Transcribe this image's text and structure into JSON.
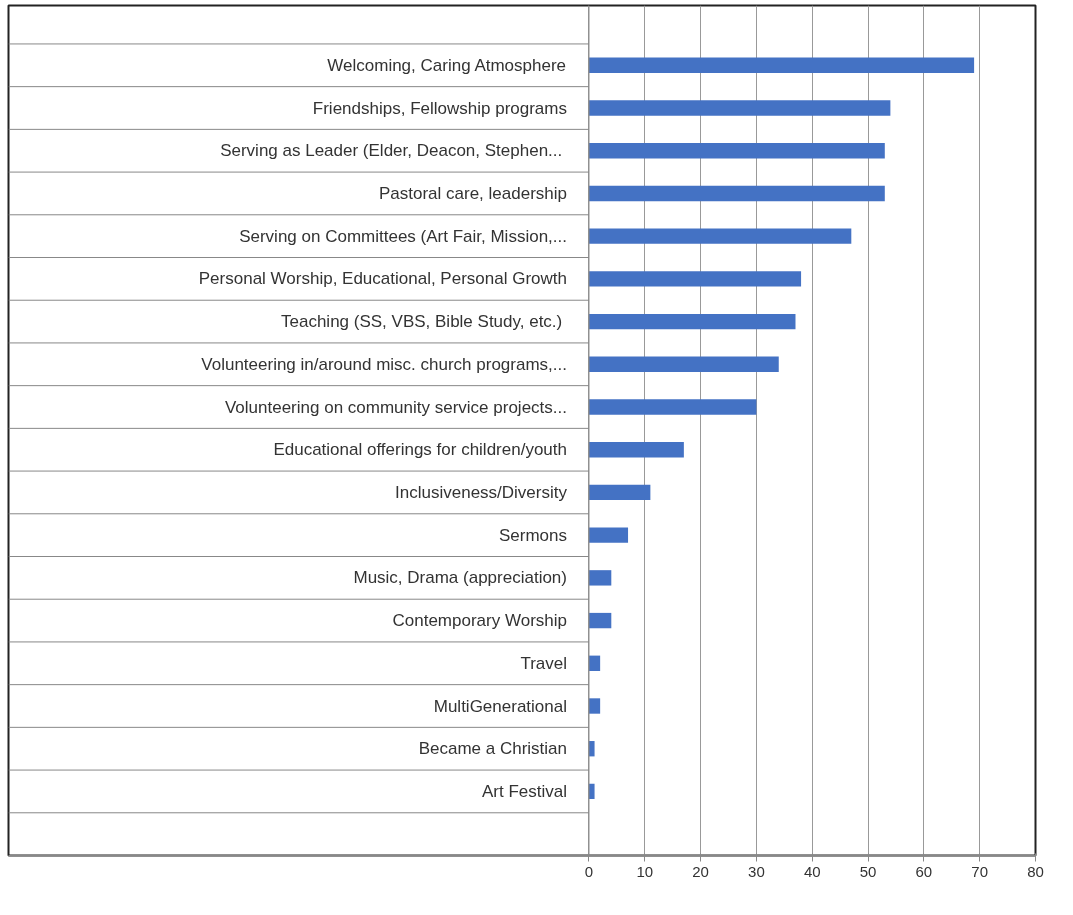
{
  "chart_data": {
    "type": "bar",
    "orientation": "horizontal",
    "color": "#4472c4",
    "categories": [
      "Welcoming, Caring Atmosphere",
      "Friendships, Fellowship programs",
      "Serving as Leader  (Elder, Deacon, Stephen...",
      "Pastoral care, leadership",
      "Serving on Committees (Art Fair, Mission,...",
      "Personal Worship, Educational, Personal Growth",
      "Teaching  (SS, VBS, Bible Study, etc.)",
      "Volunteering in/around misc. church programs,...",
      "Volunteering on community service projects...",
      "Educational offerings for children/youth",
      "Inclusiveness/Diversity",
      "Sermons",
      "Music, Drama (appreciation)",
      "Contemporary Worship",
      "Travel",
      "MultiGenerational",
      "Became a Christian",
      "Art Festival"
    ],
    "values": [
      69,
      54,
      53,
      53,
      47,
      38,
      37,
      34,
      30,
      17,
      11,
      7,
      4,
      4,
      2,
      2,
      1,
      1
    ],
    "xlim": [
      0,
      80
    ],
    "xticks": [
      0,
      10,
      20,
      30,
      40,
      50,
      60,
      70,
      80
    ],
    "grid": "x"
  }
}
